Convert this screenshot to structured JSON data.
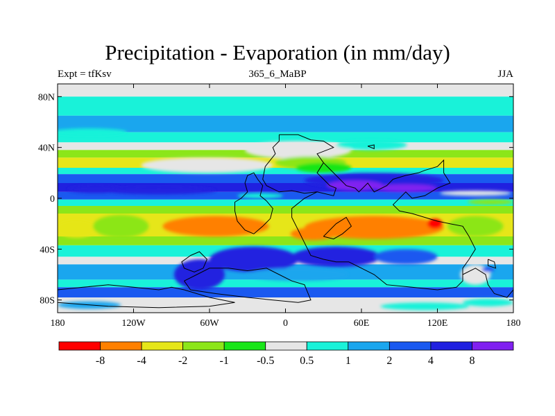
{
  "title": "Precipitation - Evaporation (in mm/day)",
  "left_subtitle": "Expt = tfKsv",
  "center_subtitle": "365_6_MaBP",
  "right_subtitle": "JJA",
  "colors": {
    "c0": "#ff0000",
    "c1": "#ff8000",
    "c2": "#e6e619",
    "c3": "#8ce619",
    "c4": "#19e619",
    "c5": "#e6e6e6",
    "c6": "#19f2d9",
    "c7": "#1aa6ee",
    "c8": "#1a59f0",
    "c9": "#2020e0",
    "c10": "#8020f0",
    "coast": "#000000"
  },
  "chart_data": {
    "type": "heatmap",
    "xlim": [
      -180,
      180
    ],
    "ylim": [
      -90,
      90
    ],
    "x_ticks": [
      {
        "value": -180,
        "label": "180"
      },
      {
        "value": -120,
        "label": "120W"
      },
      {
        "value": -60,
        "label": "60W"
      },
      {
        "value": 0,
        "label": "0"
      },
      {
        "value": 60,
        "label": "60E"
      },
      {
        "value": 120,
        "label": "120E"
      },
      {
        "value": 180,
        "label": "180"
      }
    ],
    "y_ticks": [
      {
        "value": 80,
        "label": "80N"
      },
      {
        "value": 40,
        "label": "40N"
      },
      {
        "value": 0,
        "label": "0"
      },
      {
        "value": -40,
        "label": "40S"
      },
      {
        "value": -80,
        "label": "80S"
      }
    ],
    "colorbar": {
      "colors": [
        "#ff0000",
        "#ff8000",
        "#e6e619",
        "#8ce619",
        "#19e619",
        "#e6e6e6",
        "#19f2d9",
        "#1aa6ee",
        "#1a59f0",
        "#2020e0",
        "#8020f0"
      ],
      "levels": [
        "-8",
        "-4",
        "-2",
        "-1",
        "-0.5",
        "0.5",
        "1",
        "2",
        "4",
        "8"
      ]
    },
    "lat_bands": [
      {
        "lat": [
          80,
          90
        ],
        "c": 5
      },
      {
        "lat": [
          65,
          80
        ],
        "c": 6
      },
      {
        "lat": [
          52,
          65
        ],
        "c": 7
      },
      {
        "lat": [
          44,
          52
        ],
        "c": 6
      },
      {
        "lat": [
          38,
          44
        ],
        "c": 5
      },
      {
        "lat": [
          32,
          38
        ],
        "c": 3
      },
      {
        "lat": [
          24,
          32
        ],
        "c": 2
      },
      {
        "lat": [
          19,
          24
        ],
        "c": 6
      },
      {
        "lat": [
          12,
          19
        ],
        "c": 8
      },
      {
        "lat": [
          5,
          12
        ],
        "c": 9
      },
      {
        "lat": [
          -1,
          5
        ],
        "c": 8
      },
      {
        "lat": [
          -6,
          -1
        ],
        "c": 6
      },
      {
        "lat": [
          -12,
          -6
        ],
        "c": 3
      },
      {
        "lat": [
          -30,
          -12
        ],
        "c": 2
      },
      {
        "lat": [
          -37,
          -30
        ],
        "c": 3
      },
      {
        "lat": [
          -46,
          -37
        ],
        "c": 6
      },
      {
        "lat": [
          -52,
          -46
        ],
        "c": 5
      },
      {
        "lat": [
          -64,
          -52
        ],
        "c": 7
      },
      {
        "lat": [
          -70,
          -64
        ],
        "c": 6
      },
      {
        "lat": [
          -78,
          -70
        ],
        "c": 8
      },
      {
        "lat": [
          -90,
          -78
        ],
        "c": 5
      }
    ],
    "blobs": [
      {
        "lon": -62,
        "lat": 26,
        "rx": 52,
        "ry": 6,
        "c": 5
      },
      {
        "lon": 10,
        "lat": 38,
        "rx": 42,
        "ry": 7,
        "c": 5
      },
      {
        "lon": 68,
        "lat": 42,
        "rx": 28,
        "ry": 4,
        "c": 6
      },
      {
        "lon": -155,
        "lat": 52,
        "rx": 30,
        "ry": 3,
        "c": 6
      },
      {
        "lon": 20,
        "lat": 28,
        "rx": 28,
        "ry": 5,
        "c": 3
      },
      {
        "lon": 30,
        "lat": 24,
        "rx": 22,
        "ry": 4,
        "c": 4
      },
      {
        "lon": 70,
        "lat": 14,
        "rx": 55,
        "ry": 6,
        "c": 9
      },
      {
        "lon": 55,
        "lat": 10,
        "rx": 22,
        "ry": 4,
        "c": 10
      },
      {
        "lon": 95,
        "lat": 8,
        "rx": 25,
        "ry": 3,
        "c": 10
      },
      {
        "lon": -100,
        "lat": 6,
        "rx": 45,
        "ry": 3,
        "c": 9
      },
      {
        "lon": -150,
        "lat": 7,
        "rx": 22,
        "ry": 3,
        "c": 9
      },
      {
        "lon": 150,
        "lat": 4,
        "rx": 28,
        "ry": 2,
        "c": 5
      },
      {
        "lon": 162,
        "lat": -3,
        "rx": 18,
        "ry": 2,
        "c": 3
      },
      {
        "lon": -20,
        "lat": 2,
        "rx": 18,
        "ry": 2,
        "c": 6
      },
      {
        "lon": -55,
        "lat": -22,
        "rx": 42,
        "ry": 8,
        "c": 1
      },
      {
        "lon": 70,
        "lat": -23,
        "rx": 55,
        "ry": 9,
        "c": 1
      },
      {
        "lon": 118,
        "lat": -20,
        "rx": 6,
        "ry": 4,
        "c": 0
      },
      {
        "lon": 22,
        "lat": -28,
        "rx": 18,
        "ry": 5,
        "c": 1
      },
      {
        "lon": -165,
        "lat": -24,
        "rx": 16,
        "ry": 7,
        "c": 2
      },
      {
        "lon": -130,
        "lat": -22,
        "rx": 22,
        "ry": 9,
        "c": 3
      },
      {
        "lon": 150,
        "lat": -22,
        "rx": 22,
        "ry": 8,
        "c": 3
      },
      {
        "lon": -25,
        "lat": -48,
        "rx": 35,
        "ry": 10,
        "c": 9
      },
      {
        "lon": 40,
        "lat": -46,
        "rx": 35,
        "ry": 8,
        "c": 9
      },
      {
        "lon": 95,
        "lat": -46,
        "rx": 25,
        "ry": 6,
        "c": 8
      },
      {
        "lon": -68,
        "lat": -60,
        "rx": 20,
        "ry": 12,
        "c": 9
      },
      {
        "lon": 10,
        "lat": -60,
        "rx": 40,
        "ry": 5,
        "c": 7
      },
      {
        "lon": -155,
        "lat": -84,
        "rx": 25,
        "ry": 3,
        "c": 7
      },
      {
        "lon": 110,
        "lat": -85,
        "rx": 35,
        "ry": 3,
        "c": 6
      },
      {
        "lon": 160,
        "lat": -82,
        "rx": 20,
        "ry": 3,
        "c": 6
      },
      {
        "lon": 150,
        "lat": -60,
        "rx": 12,
        "ry": 8,
        "c": 5
      },
      {
        "lon": 160,
        "lat": -56,
        "rx": 5,
        "ry": 2,
        "c": 8
      }
    ],
    "coastlines": [
      [
        [
          -5,
          50
        ],
        [
          10,
          50
        ],
        [
          20,
          46
        ],
        [
          30,
          45
        ],
        [
          38,
          40
        ],
        [
          25,
          35
        ],
        [
          30,
          28
        ],
        [
          25,
          20
        ],
        [
          30,
          15
        ],
        [
          35,
          10
        ],
        [
          40,
          8
        ],
        [
          38,
          2
        ],
        [
          25,
          5
        ],
        [
          15,
          4
        ],
        [
          5,
          6
        ],
        [
          -5,
          5
        ],
        [
          -15,
          10
        ],
        [
          -18,
          15
        ],
        [
          -16,
          25
        ],
        [
          -8,
          35
        ],
        [
          -10,
          40
        ],
        [
          -5,
          45
        ],
        [
          -5,
          50
        ]
      ],
      [
        [
          30,
          28
        ],
        [
          40,
          18
        ],
        [
          48,
          10
        ],
        [
          55,
          8
        ],
        [
          58,
          5
        ],
        [
          65,
          12
        ],
        [
          70,
          5
        ],
        [
          80,
          10
        ],
        [
          85,
          15
        ],
        [
          95,
          18
        ],
        [
          105,
          20
        ],
        [
          110,
          22
        ],
        [
          120,
          25
        ],
        [
          125,
          30
        ],
        [
          125,
          20
        ],
        [
          130,
          12
        ],
        [
          120,
          8
        ],
        [
          110,
          2
        ],
        [
          100,
          0
        ],
        [
          95,
          5
        ],
        [
          85,
          -5
        ],
        [
          90,
          -10
        ],
        [
          100,
          -12
        ],
        [
          110,
          -15
        ],
        [
          120,
          -18
        ],
        [
          130,
          -20
        ],
        [
          140,
          -22
        ],
        [
          145,
          -30
        ],
        [
          150,
          -40
        ],
        [
          145,
          -48
        ],
        [
          140,
          -55
        ],
        [
          140,
          -65
        ],
        [
          135,
          -70
        ],
        [
          120,
          -72
        ],
        [
          100,
          -70
        ],
        [
          80,
          -68
        ],
        [
          70,
          -60
        ],
        [
          60,
          -55
        ],
        [
          50,
          -50
        ],
        [
          40,
          -50
        ],
        [
          30,
          -48
        ],
        [
          20,
          -45
        ],
        [
          15,
          -35
        ],
        [
          10,
          -25
        ],
        [
          5,
          -15
        ],
        [
          5,
          -8
        ],
        [
          10,
          -4
        ],
        [
          15,
          0
        ],
        [
          25,
          5
        ]
      ],
      [
        [
          -25,
          -28
        ],
        [
          -18,
          -22
        ],
        [
          -12,
          -16
        ],
        [
          -10,
          -8
        ],
        [
          -15,
          -2
        ],
        [
          -20,
          2
        ],
        [
          -18,
          10
        ],
        [
          -22,
          15
        ],
        [
          -25,
          20
        ],
        [
          -30,
          18
        ],
        [
          -32,
          12
        ],
        [
          -30,
          5
        ],
        [
          -35,
          0
        ],
        [
          -40,
          -3
        ],
        [
          -40,
          -10
        ],
        [
          -38,
          -18
        ],
        [
          -32,
          -25
        ],
        [
          -25,
          -28
        ]
      ],
      [
        [
          30,
          -30
        ],
        [
          40,
          -20
        ],
        [
          48,
          -15
        ],
        [
          52,
          -22
        ],
        [
          45,
          -28
        ],
        [
          38,
          -32
        ],
        [
          30,
          -30
        ]
      ],
      [
        [
          -80,
          -65
        ],
        [
          -70,
          -60
        ],
        [
          -60,
          -55
        ],
        [
          -45,
          -55
        ],
        [
          -30,
          -57
        ],
        [
          -15,
          -55
        ],
        [
          -5,
          -60
        ],
        [
          5,
          -65
        ],
        [
          15,
          -68
        ],
        [
          20,
          -80
        ],
        [
          10,
          -82
        ],
        [
          -10,
          -80
        ],
        [
          -30,
          -78
        ],
        [
          -55,
          -75
        ],
        [
          -75,
          -72
        ],
        [
          -80,
          -65
        ]
      ],
      [
        [
          -180,
          -72
        ],
        [
          -160,
          -70
        ],
        [
          -140,
          -68
        ],
        [
          -120,
          -70
        ],
        [
          -100,
          -72
        ],
        [
          -90,
          -70
        ],
        [
          -80,
          -72
        ],
        [
          -60,
          -78
        ],
        [
          -40,
          -82
        ],
        [
          -60,
          -85
        ],
        [
          -100,
          -86
        ],
        [
          -140,
          -85
        ],
        [
          -180,
          -82
        ]
      ],
      [
        [
          -75,
          -45
        ],
        [
          -68,
          -42
        ],
        [
          -62,
          -48
        ],
        [
          -65,
          -55
        ],
        [
          -72,
          -58
        ],
        [
          -80,
          -55
        ],
        [
          -82,
          -50
        ],
        [
          -75,
          -45
        ]
      ],
      [
        [
          140,
          -60
        ],
        [
          150,
          -55
        ],
        [
          158,
          -60
        ],
        [
          160,
          -68
        ],
        [
          165,
          -75
        ],
        [
          175,
          -78
        ],
        [
          180,
          -72
        ]
      ],
      [
        [
          160,
          -48
        ],
        [
          165,
          -50
        ],
        [
          166,
          -55
        ],
        [
          160,
          -53
        ],
        [
          160,
          -48
        ]
      ],
      [
        [
          65,
          41
        ],
        [
          70,
          42
        ],
        [
          70,
          39
        ],
        [
          65,
          41
        ]
      ]
    ]
  }
}
